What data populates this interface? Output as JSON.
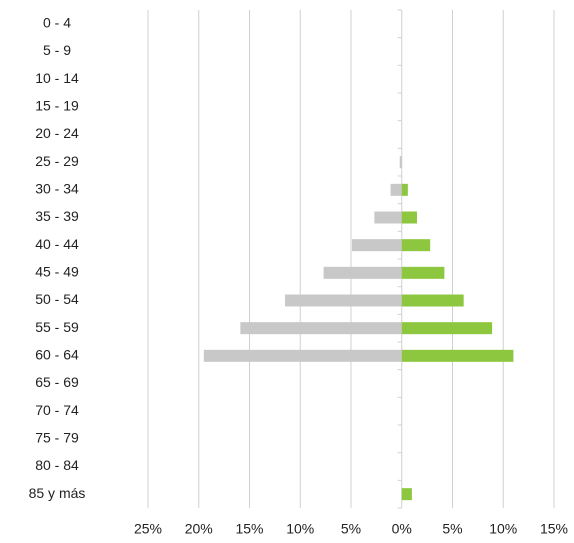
{
  "chart_data": {
    "type": "bar",
    "orientation": "horizontal",
    "categories": [
      "0 - 4",
      "5 - 9",
      "10 - 14",
      "15 - 19",
      "20 - 24",
      "25 - 29",
      "30 - 34",
      "35 - 39",
      "40 - 44",
      "45 - 49",
      "50 - 54",
      "55 - 59",
      "60 - 64",
      "65 - 69",
      "70 - 74",
      "75 - 79",
      "80 - 84",
      "85 y más"
    ],
    "series": [
      {
        "color": "#c8c8c8",
        "values": [
          0,
          0,
          0,
          0,
          0,
          -0.2,
          -1.1,
          -2.7,
          -4.9,
          -7.7,
          -11.5,
          -15.9,
          -19.5,
          0,
          0,
          0,
          0,
          0
        ]
      },
      {
        "color": "#8dc63f",
        "values": [
          0,
          0,
          0,
          0,
          0,
          0,
          0.6,
          1.5,
          2.8,
          4.2,
          6.1,
          8.9,
          11,
          0,
          0,
          0,
          0,
          1
        ]
      }
    ],
    "xlim": [
      -25,
      15
    ],
    "xticks": [
      {
        "value": -25,
        "label": "25%"
      },
      {
        "value": -20,
        "label": "20%"
      },
      {
        "value": -15,
        "label": "15%"
      },
      {
        "value": -10,
        "label": "10%"
      },
      {
        "value": -5,
        "label": "5%"
      },
      {
        "value": 0,
        "label": "0%"
      },
      {
        "value": 5,
        "label": "5%"
      },
      {
        "value": 10,
        "label": "10%"
      },
      {
        "value": 15,
        "label": "15%"
      }
    ],
    "grid": true
  }
}
